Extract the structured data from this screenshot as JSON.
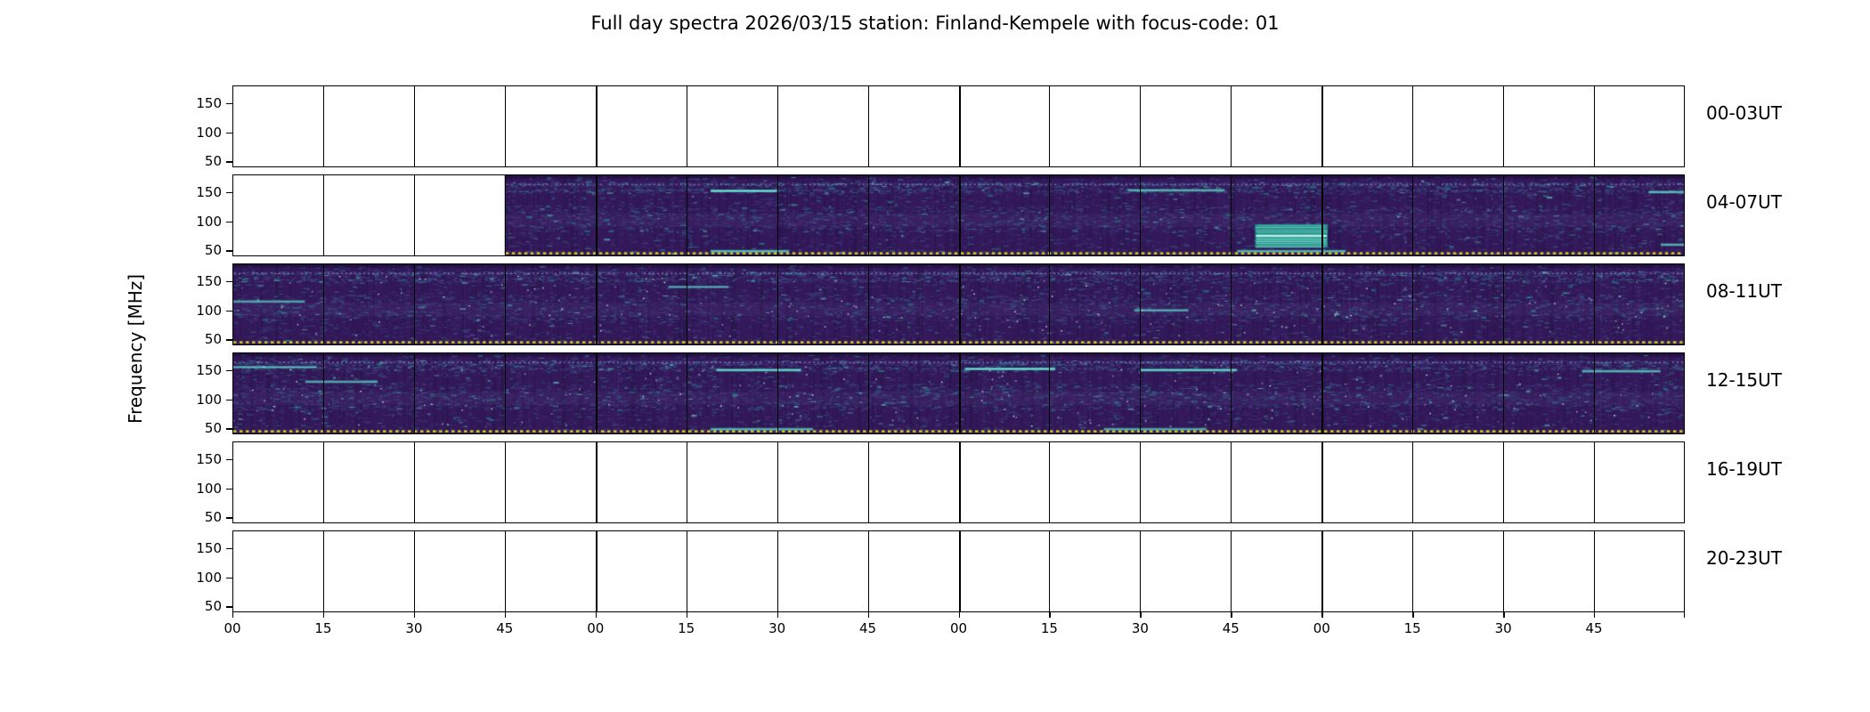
{
  "figure": {
    "title": "Full day spectra 2026/03/15 station: Finland-Kempele with focus-code: 01",
    "ylabel": "Frequency [MHz]"
  },
  "chart_data": {
    "type": "heatmap",
    "title": "Full day spectra 2026/03/15 station: Finland-Kempele with focus-code: 01",
    "station": "Finland-Kempele",
    "date": "2026/03/15",
    "focus_code": "01",
    "ylabel": "Frequency [MHz]",
    "y_axis": {
      "label": "Frequency [MHz]",
      "ticks_display": [
        150,
        100,
        50
      ],
      "range": [
        40,
        180
      ],
      "unit": "MHz"
    },
    "x_tick_labels": [
      "00",
      "15",
      "30",
      "45",
      "00",
      "15",
      "30",
      "45",
      "00",
      "15",
      "30",
      "45",
      "00",
      "15",
      "30",
      "45"
    ],
    "minutes_per_row": 240,
    "segments_per_row": 16,
    "segment_minutes": 15,
    "colormap": "viridis",
    "colors": {
      "background_data": "#33195a",
      "burst_teal": "#49c9b8",
      "marker_yellow": "#ede30c",
      "empty": "#ffffff"
    },
    "rows": [
      {
        "label": "00-03UT",
        "time_range": "00:00-04:00",
        "data_present": false,
        "filled_segments": [],
        "dense_activity": false,
        "features": []
      },
      {
        "label": "04-07UT",
        "time_range": "04:00-08:00",
        "data_present": true,
        "data_start": "04:45",
        "filled_segments": [
          [
            3,
            16
          ]
        ],
        "dense_activity": false,
        "features": [
          {
            "type": "line",
            "t0": 79,
            "t1": 90,
            "freq": 152,
            "s": 1.0
          },
          {
            "type": "line",
            "t0": 79,
            "t1": 92,
            "freq": 49,
            "s": 0.6
          },
          {
            "type": "line",
            "t0": 148,
            "t1": 164,
            "freq": 153,
            "s": 0.5
          },
          {
            "type": "blob",
            "t0": 169,
            "t1": 181,
            "f0": 55,
            "f1": 95
          },
          {
            "type": "line",
            "t0": 166,
            "t1": 184,
            "freq": 49,
            "s": 0.5
          },
          {
            "type": "line",
            "t0": 234,
            "t1": 240,
            "freq": 150,
            "s": 0.6
          },
          {
            "type": "line",
            "t0": 236,
            "t1": 240,
            "freq": 60,
            "s": 0.5
          }
        ]
      },
      {
        "label": "08-11UT",
        "time_range": "08:00-12:00",
        "data_present": true,
        "filled_segments": [
          [
            0,
            16
          ]
        ],
        "dense_activity": true,
        "features": [
          {
            "type": "line",
            "t0": 0,
            "t1": 12,
            "freq": 115,
            "s": 0.35
          },
          {
            "type": "line",
            "t0": 72,
            "t1": 82,
            "freq": 140,
            "s": 0.3
          },
          {
            "type": "line",
            "t0": 149,
            "t1": 158,
            "freq": 100,
            "s": 0.35
          }
        ]
      },
      {
        "label": "12-15UT",
        "time_range": "12:00-16:00",
        "data_present": true,
        "filled_segments": [
          [
            0,
            16
          ]
        ],
        "dense_activity": true,
        "features": [
          {
            "type": "line",
            "t0": 0,
            "t1": 14,
            "freq": 155,
            "s": 0.4
          },
          {
            "type": "line",
            "t0": 12,
            "t1": 24,
            "freq": 130,
            "s": 0.4
          },
          {
            "type": "line",
            "t0": 80,
            "t1": 94,
            "freq": 150,
            "s": 0.85
          },
          {
            "type": "line",
            "t0": 121,
            "t1": 136,
            "freq": 152,
            "s": 0.9
          },
          {
            "type": "line",
            "t0": 150,
            "t1": 166,
            "freq": 150,
            "s": 0.85
          },
          {
            "type": "line",
            "t0": 223,
            "t1": 236,
            "freq": 148,
            "s": 0.5
          },
          {
            "type": "line",
            "t0": 79,
            "t1": 96,
            "freq": 49,
            "s": 0.5
          },
          {
            "type": "line",
            "t0": 144,
            "t1": 161,
            "freq": 49,
            "s": 0.4
          }
        ]
      },
      {
        "label": "16-19UT",
        "time_range": "16:00-20:00",
        "data_present": false,
        "filled_segments": [],
        "dense_activity": false,
        "features": []
      },
      {
        "label": "20-23UT",
        "time_range": "20:00-24:00",
        "data_present": false,
        "filled_segments": [],
        "dense_activity": false,
        "features": []
      }
    ]
  }
}
